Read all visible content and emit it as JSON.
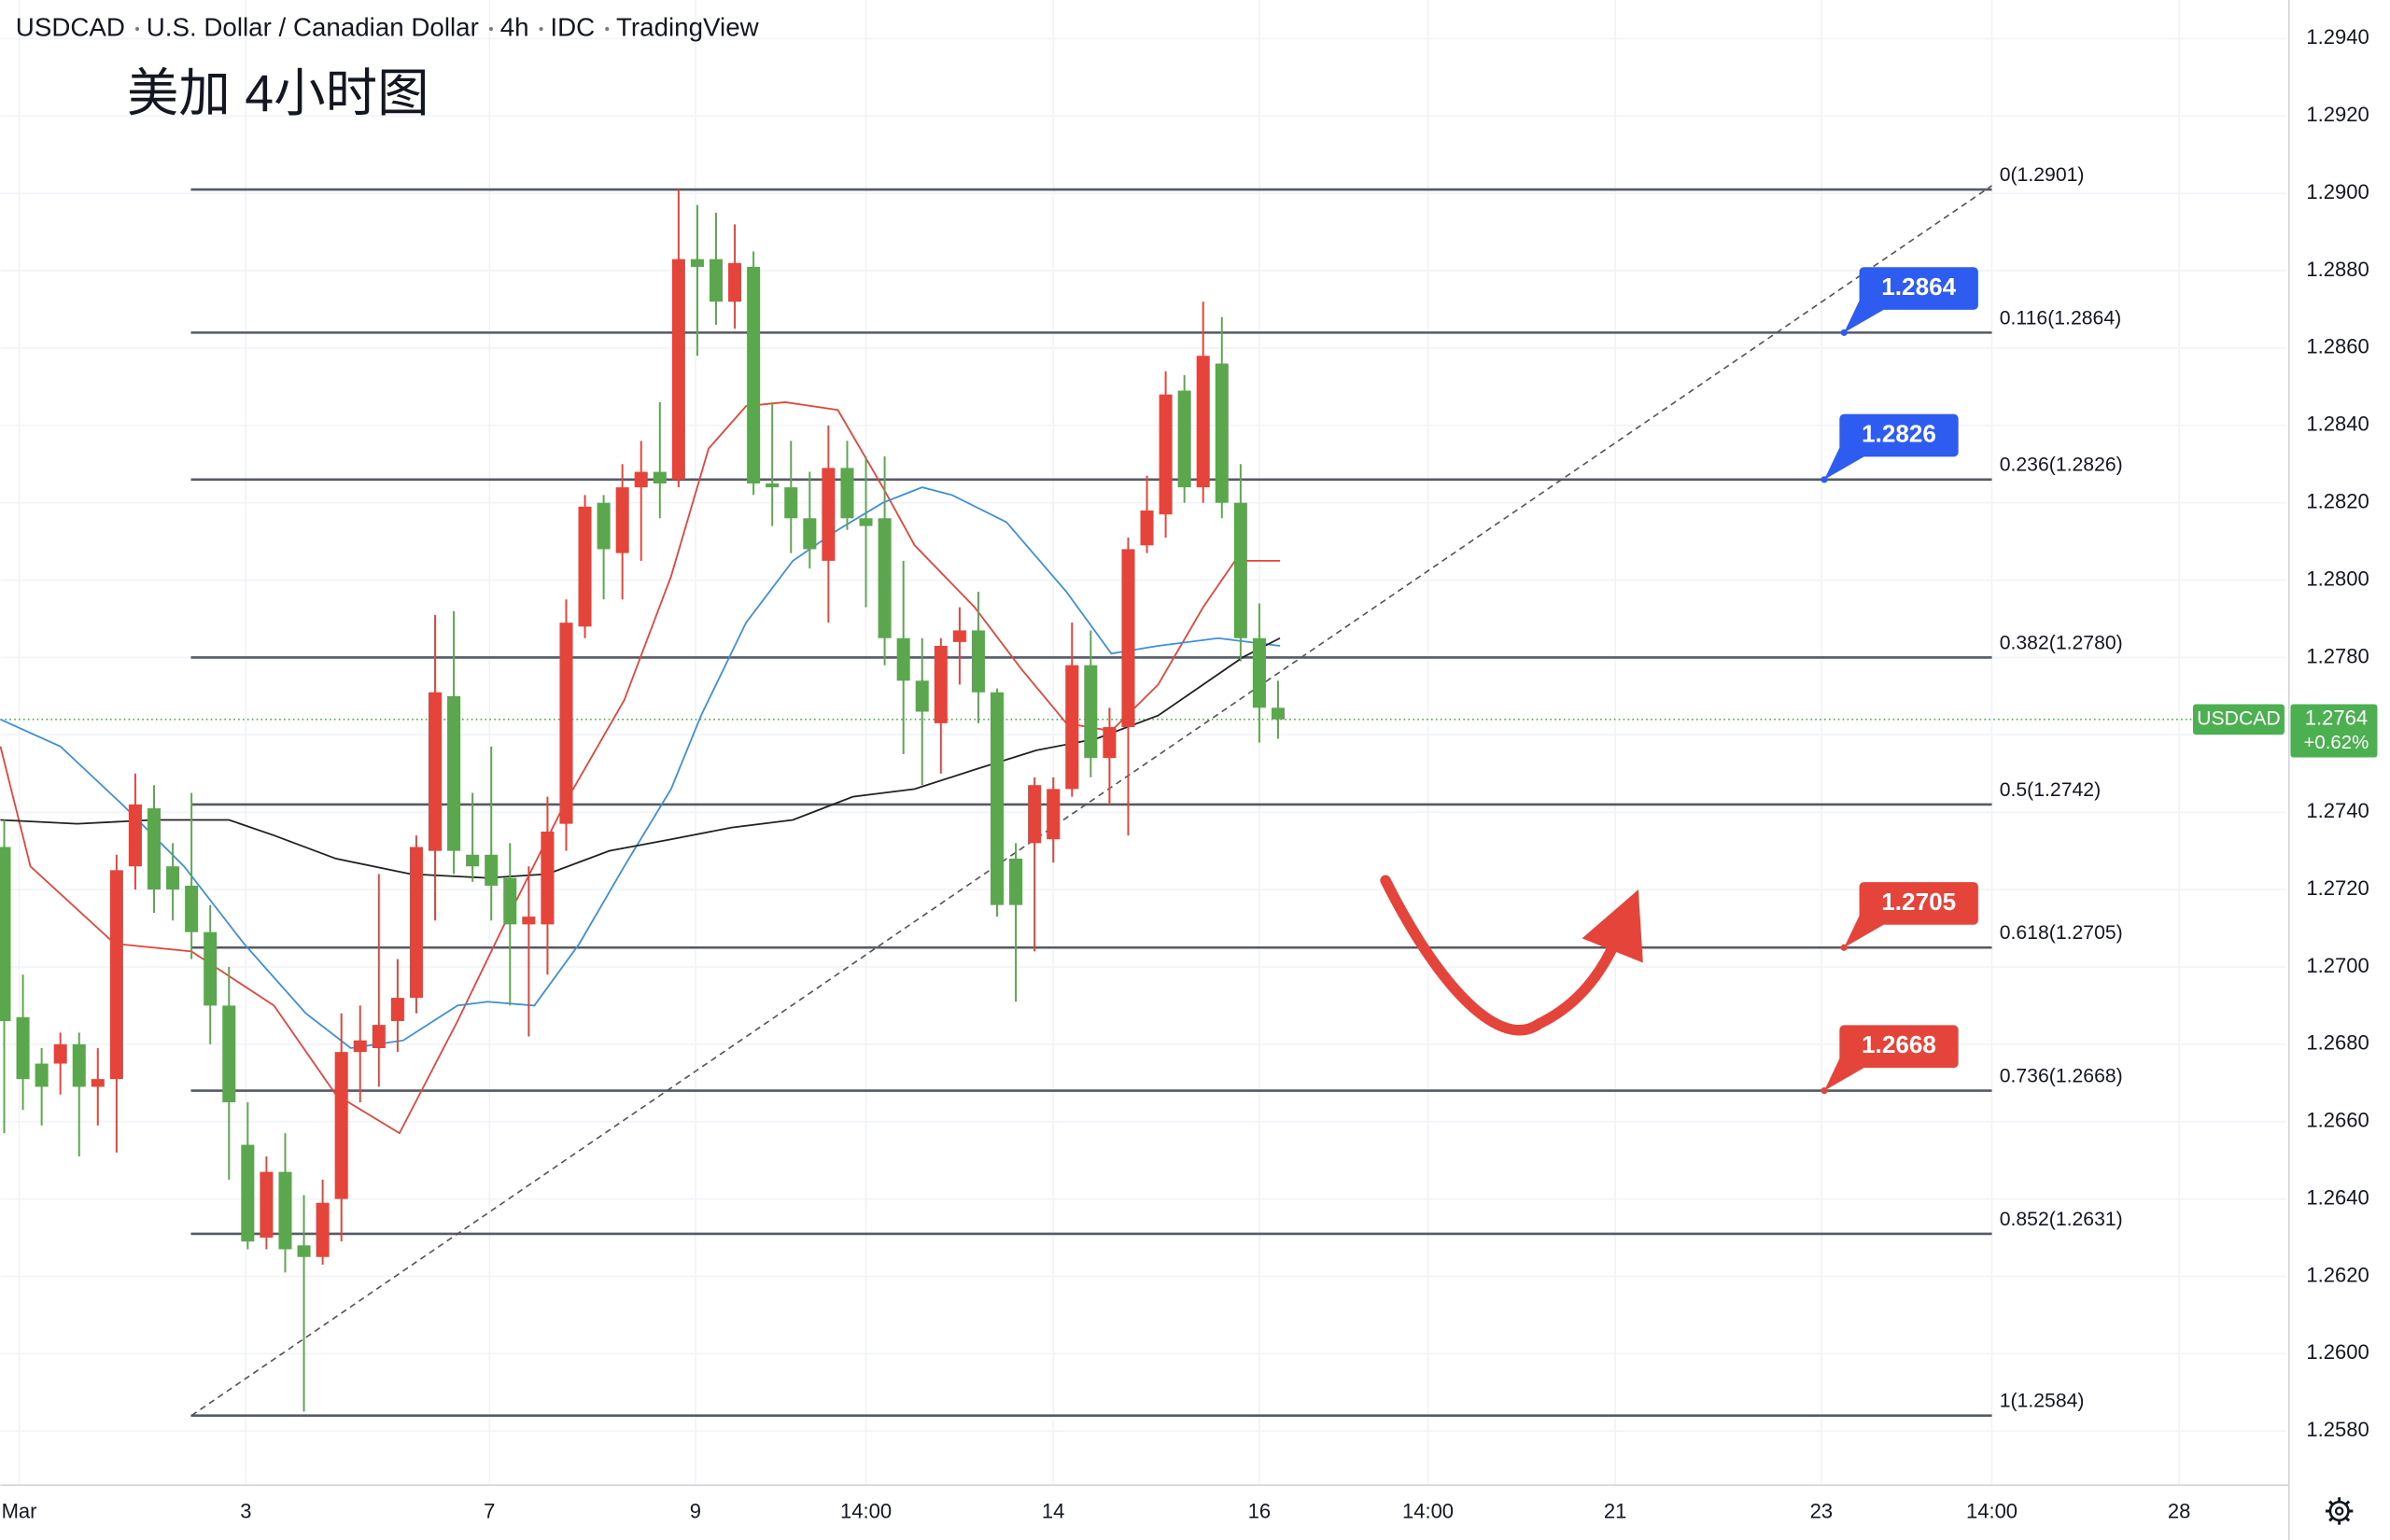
{
  "chart_data": {
    "type": "candlestick",
    "header": [
      "USDCAD",
      "U.S. Dollar / Canadian Dollar",
      "4h",
      "IDC",
      "TradingView"
    ],
    "title": "美加 4小时图",
    "x": [
      0,
      1,
      2,
      3,
      4,
      5,
      6,
      7,
      8,
      9,
      10,
      11,
      12,
      13,
      14,
      15,
      16,
      17,
      18,
      19,
      20,
      21,
      22,
      23,
      24,
      25,
      26,
      27,
      28,
      29,
      30,
      31,
      32,
      33,
      34,
      35,
      36,
      37,
      38,
      39,
      40,
      41,
      42,
      43,
      44,
      45,
      46,
      47,
      48,
      49,
      50,
      51,
      52,
      53,
      54,
      55,
      56,
      57,
      58,
      59,
      60,
      61,
      62,
      63,
      64,
      65,
      66,
      67,
      68
    ],
    "open": [
      1.2731,
      1.2687,
      1.2675,
      1.2675,
      1.268,
      1.2669,
      1.2671,
      1.2726,
      1.2741,
      1.2726,
      1.2721,
      1.2709,
      1.269,
      1.2654,
      1.263,
      1.2647,
      1.2628,
      1.2625,
      1.264,
      1.2678,
      1.2679,
      1.2686,
      1.2692,
      1.273,
      1.277,
      1.2729,
      1.2729,
      1.2723,
      1.2711,
      1.2711,
      1.2737,
      1.2788,
      1.282,
      1.2807,
      1.2824,
      1.2828,
      1.2826,
      1.2883,
      1.2883,
      1.2872,
      1.2881,
      1.2825,
      1.2824,
      1.2816,
      1.2805,
      1.2829,
      1.2816,
      1.2816,
      1.2785,
      1.2774,
      1.2763,
      1.2784,
      1.2787,
      1.2771,
      1.2728,
      1.2732,
      1.2733,
      1.2746,
      1.2778,
      1.2754,
      1.2762,
      1.2809,
      1.2817,
      1.2849,
      1.2824,
      1.2856,
      1.282,
      1.2785,
      1.2767
    ],
    "high": [
      1.2738,
      1.2698,
      1.2679,
      1.2683,
      1.2683,
      1.2679,
      1.2729,
      1.275,
      1.2747,
      1.2732,
      1.2745,
      1.2716,
      1.27,
      1.2665,
      1.2651,
      1.2657,
      1.2641,
      1.2645,
      1.2688,
      1.269,
      1.2724,
      1.2702,
      1.2734,
      1.2791,
      1.2792,
      1.2745,
      1.2757,
      1.2732,
      1.2726,
      1.2744,
      1.2795,
      1.2822,
      1.2822,
      1.283,
      1.2836,
      1.2846,
      1.2901,
      1.2897,
      1.2895,
      1.2892,
      1.2885,
      1.2846,
      1.2836,
      1.2828,
      1.284,
      1.2836,
      1.2832,
      1.2832,
      1.2805,
      1.2785,
      1.2785,
      1.2793,
      1.2797,
      1.2772,
      1.2732,
      1.2749,
      1.2749,
      1.2789,
      1.2787,
      1.2767,
      1.2811,
      1.2827,
      1.2854,
      1.2853,
      1.2872,
      1.2868,
      1.283,
      1.2794,
      1.2774
    ],
    "low": [
      1.2657,
      1.2663,
      1.2659,
      1.2667,
      1.2651,
      1.2659,
      1.2652,
      1.272,
      1.2714,
      1.2712,
      1.2702,
      1.268,
      1.2645,
      1.2627,
      1.2627,
      1.2621,
      1.2585,
      1.2623,
      1.2629,
      1.2665,
      1.2669,
      1.2678,
      1.2688,
      1.2712,
      1.2724,
      1.2722,
      1.2712,
      1.269,
      1.2682,
      1.2698,
      1.273,
      1.2785,
      1.2795,
      1.2795,
      1.2805,
      1.2816,
      1.2824,
      1.2858,
      1.2866,
      1.2865,
      1.2822,
      1.2814,
      1.2807,
      1.2803,
      1.2789,
      1.2813,
      1.2793,
      1.2778,
      1.2755,
      1.2747,
      1.275,
      1.2773,
      1.2763,
      1.2713,
      1.2691,
      1.2704,
      1.2727,
      1.2744,
      1.2749,
      1.2742,
      1.2734,
      1.2807,
      1.2811,
      1.282,
      1.282,
      1.2816,
      1.2779,
      1.2758,
      1.2759
    ],
    "close": [
      1.2686,
      1.2671,
      1.2669,
      1.268,
      1.2669,
      1.2671,
      1.2725,
      1.2742,
      1.272,
      1.272,
      1.2709,
      1.269,
      1.2665,
      1.2629,
      1.2647,
      1.2627,
      1.2625,
      1.2639,
      1.2678,
      1.2681,
      1.2685,
      1.2692,
      1.2731,
      1.2771,
      1.273,
      1.2726,
      1.2721,
      1.2711,
      1.2713,
      1.2735,
      1.2789,
      1.2819,
      1.2808,
      1.2824,
      1.2828,
      1.2825,
      1.2883,
      1.2881,
      1.2872,
      1.2882,
      1.2825,
      1.2824,
      1.2816,
      1.2808,
      1.2829,
      1.2816,
      1.2814,
      1.2785,
      1.2774,
      1.2766,
      1.2783,
      1.2787,
      1.2771,
      1.2716,
      1.2716,
      1.2747,
      1.2746,
      1.2778,
      1.2754,
      1.2762,
      1.2808,
      1.2818,
      1.2848,
      1.2824,
      1.2858,
      1.282,
      1.2785,
      1.2767,
      1.2764
    ],
    "up_color": "#e5443a",
    "down_color": "#5aa74d",
    "moving_averages": [
      {
        "color": "#e5443a",
        "x": [
          -0.2,
          1.4,
          5.9,
          10,
          14.4,
          17.7,
          21.1,
          24.2,
          26.6,
          29.9,
          33.1,
          35.6,
          37.6,
          39.6,
          41.7,
          44.5,
          46.9,
          48.6,
          51.8,
          54.3,
          56.7,
          59.1,
          61.6,
          64,
          65.7,
          68.1
        ],
        "values": [
          1.2757,
          1.2726,
          1.2706,
          1.2704,
          1.269,
          1.2667,
          1.2657,
          1.2686,
          1.271,
          1.2742,
          1.2769,
          1.2801,
          1.2834,
          1.2845,
          1.2846,
          1.2844,
          1.2824,
          1.2809,
          1.2793,
          1.2777,
          1.2763,
          1.2761,
          1.2773,
          1.2793,
          1.2805,
          1.2805
        ]
      },
      {
        "color": "#3d8fd9",
        "x": [
          -0.2,
          3,
          6.3,
          9.6,
          12.8,
          16.1,
          18.5,
          21.3,
          24.2,
          25.8,
          28.3,
          30.7,
          33.1,
          35.6,
          37.2,
          39.6,
          42.1,
          44.5,
          46.9,
          49,
          50.6,
          53.5,
          56.7,
          59.1,
          61.6,
          64.8,
          68.1
        ],
        "values": [
          1.2764,
          1.2757,
          1.2742,
          1.2726,
          1.2706,
          1.2688,
          1.2679,
          1.2681,
          1.269,
          1.2691,
          1.269,
          1.2706,
          1.2726,
          1.2746,
          1.2765,
          1.2789,
          1.2805,
          1.2813,
          1.282,
          1.2824,
          1.2822,
          1.2815,
          1.2797,
          1.2781,
          1.2783,
          1.2785,
          1.2783
        ]
      },
      {
        "color": "#222222",
        "x": [
          -0.2,
          3.9,
          7.9,
          12,
          14.4,
          17.7,
          21.7,
          25.8,
          29,
          32.3,
          35.6,
          38.8,
          42.1,
          45.3,
          48.6,
          51.8,
          55.1,
          58.3,
          61.6,
          64,
          66.1,
          68.1
        ],
        "values": [
          1.2738,
          1.2737,
          1.2738,
          1.2738,
          1.2734,
          1.2728,
          1.2724,
          1.2723,
          1.2724,
          1.273,
          1.2733,
          1.2736,
          1.2738,
          1.2744,
          1.2746,
          1.2751,
          1.2756,
          1.2759,
          1.2765,
          1.2773,
          1.278,
          1.2785
        ]
      }
    ],
    "fib_levels": [
      {
        "label": "0(1.2901)",
        "value": 1.2901
      },
      {
        "label": "0.116(1.2864)",
        "value": 1.2864
      },
      {
        "label": "0.236(1.2826)",
        "value": 1.2826
      },
      {
        "label": "0.382(1.2780)",
        "value": 1.278
      },
      {
        "label": "0.5(1.2742)",
        "value": 1.2742
      },
      {
        "label": "0.618(1.2705)",
        "value": 1.2705
      },
      {
        "label": "0.736(1.2668)",
        "value": 1.2668
      },
      {
        "label": "0.852(1.2631)",
        "value": 1.2631
      },
      {
        "label": "1(1.2584)",
        "value": 1.2584
      }
    ],
    "trendline": {
      "x": [
        10,
        106.1
      ],
      "values": [
        1.2584,
        1.2902
      ]
    },
    "callouts": [
      {
        "value": 1.2864,
        "color": "#2f5cf0"
      },
      {
        "value": 1.2826,
        "color": "#2f5cf0"
      },
      {
        "value": 1.2705,
        "color": "#e5443a"
      },
      {
        "value": 1.2668,
        "color": "#e5443a"
      }
    ],
    "last": {
      "symbol": "USDCAD",
      "value": 1.2764,
      "change": "+0.62%",
      "color": "#4caf50"
    },
    "xlim": [
      -0.2,
      121.8
    ],
    "ylim": [
      1.2566,
      1.295
    ],
    "xticks": [
      {
        "value": 0.8,
        "label": "Mar"
      },
      {
        "value": 12.9,
        "label": "3"
      },
      {
        "value": 25.9,
        "label": "7"
      },
      {
        "value": 36.9,
        "label": "9"
      },
      {
        "value": 46,
        "label": "14:00"
      },
      {
        "value": 56,
        "label": "14"
      },
      {
        "value": 67,
        "label": "16"
      },
      {
        "value": 76,
        "label": "14:00"
      },
      {
        "value": 86,
        "label": "21"
      },
      {
        "value": 97,
        "label": "23"
      },
      {
        "value": 106.1,
        "label": "14:00"
      },
      {
        "value": 116.1,
        "label": "28"
      }
    ],
    "yticks": [
      {
        "value": 1.294,
        "label": "1.2940"
      },
      {
        "value": 1.292,
        "label": "1.2920"
      },
      {
        "value": 1.29,
        "label": "1.2900"
      },
      {
        "value": 1.288,
        "label": "1.2880"
      },
      {
        "value": 1.286,
        "label": "1.2860"
      },
      {
        "value": 1.284,
        "label": "1.2840"
      },
      {
        "value": 1.282,
        "label": "1.2820"
      },
      {
        "value": 1.28,
        "label": "1.2800"
      },
      {
        "value": 1.278,
        "label": "1.2780"
      },
      {
        "value": 1.276,
        "label": "1.2760"
      },
      {
        "value": 1.274,
        "label": "1.2740"
      },
      {
        "value": 1.272,
        "label": "1.2720"
      },
      {
        "value": 1.27,
        "label": "1.2700"
      },
      {
        "value": 1.268,
        "label": "1.2680"
      },
      {
        "value": 1.266,
        "label": "1.2660"
      },
      {
        "value": 1.264,
        "label": "1.2640"
      },
      {
        "value": 1.262,
        "label": "1.2620"
      },
      {
        "value": 1.26,
        "label": "1.2600"
      },
      {
        "value": 1.258,
        "label": "1.2580"
      }
    ],
    "grid": true
  }
}
